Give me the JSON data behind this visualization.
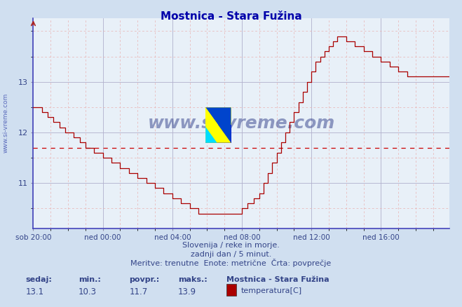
{
  "title": "Mostnica - Stara Fužina",
  "bg_color": "#d0dff0",
  "plot_bg_color": "#e8f0f8",
  "line_color": "#aa0000",
  "avg_line_color": "#cc0000",
  "avg_value": 11.7,
  "min_val": 10.3,
  "max_val": 13.9,
  "current_val": 13.1,
  "xlabel_labels": [
    "sob 20:00",
    "ned 00:00",
    "ned 04:00",
    "ned 08:00",
    "ned 12:00",
    "ned 16:00"
  ],
  "ytick_labels": [
    "11",
    "12",
    "13"
  ],
  "ytick_values": [
    11,
    12,
    13
  ],
  "ymin": 10.1,
  "ymax": 14.25,
  "xmin": 0,
  "xmax": 287,
  "x_tick_positions": [
    0,
    48,
    96,
    144,
    192,
    240
  ],
  "footer_line1": "Slovenija / reke in morje.",
  "footer_line2": "zadnji dan / 5 minut.",
  "footer_line3": "Meritve: trenutne  Enote: metrične  Črta: povprečje",
  "legend_station": "Mostnica - Stara Fužina",
  "legend_param": "temperatura[C]",
  "label_sedaj": "sedaj:",
  "label_min": "min.:",
  "label_povpr": "povpr.:",
  "label_maks": "maks.:",
  "watermark_text": "www.si-vreme.com",
  "grid_color_major": "#b0b0cc",
  "grid_color_minor": "#e8b0b0",
  "title_color": "#0000aa",
  "text_color": "#334488",
  "side_label": "www.si-vreme.com"
}
